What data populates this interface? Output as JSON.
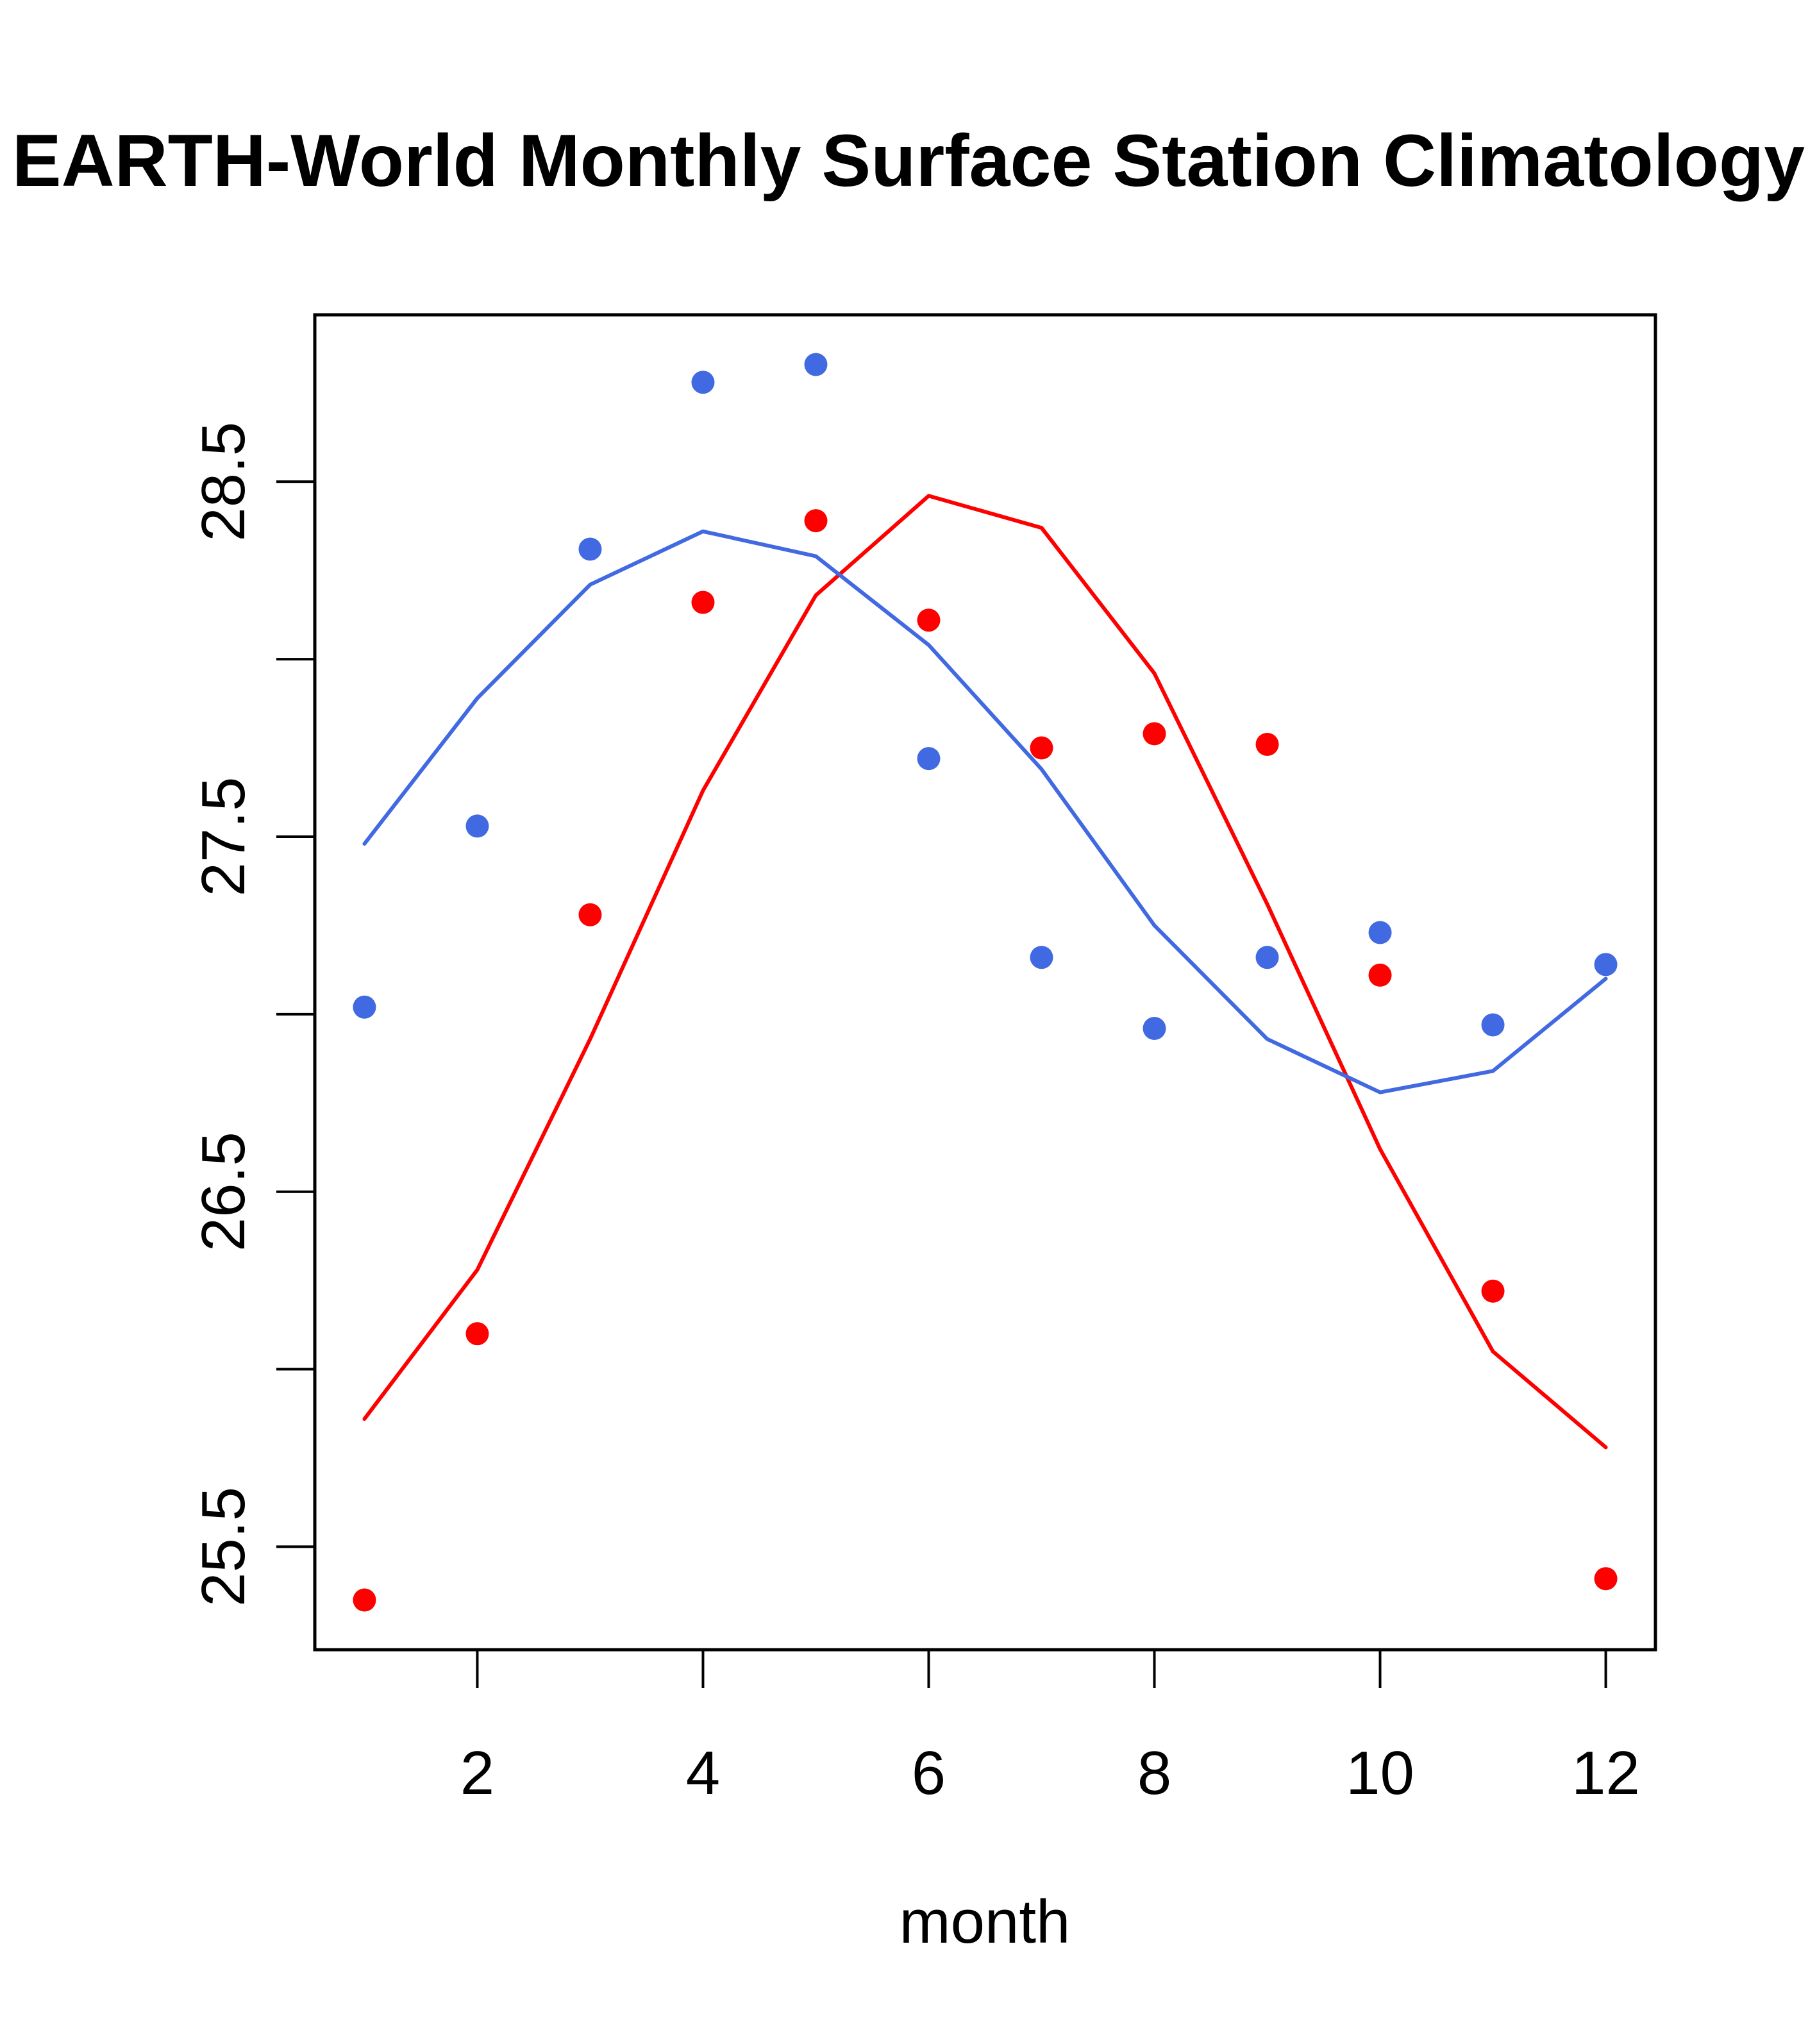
{
  "chart_data": {
    "type": "scatter",
    "title": "EARTH-World Monthly Surface Station Climatology",
    "xlabel": "month",
    "ylabel": "",
    "x": [
      1,
      2,
      3,
      4,
      5,
      6,
      7,
      8,
      9,
      10,
      11,
      12
    ],
    "xlim": [
      0.56,
      12.44
    ],
    "ylim": [
      25.21,
      28.97
    ],
    "xticks": [
      2,
      4,
      6,
      8,
      10,
      12
    ],
    "xtick_labels": [
      "2",
      "4",
      "6",
      "8",
      "10",
      "12"
    ],
    "yticks": [
      25.5,
      26.0,
      26.5,
      27.0,
      27.5,
      28.0,
      28.5
    ],
    "ytick_labels": [
      "25.5",
      "",
      "26.5",
      "",
      "27.5",
      "",
      "28.5"
    ],
    "grid": false,
    "legend": null,
    "series": [
      {
        "name": "red-points",
        "kind": "points",
        "color": "#FF0000",
        "values": [
          25.35,
          26.1,
          27.28,
          28.16,
          28.39,
          28.11,
          27.75,
          27.79,
          27.76,
          27.11,
          26.22,
          25.41
        ]
      },
      {
        "name": "red-line",
        "kind": "line",
        "color": "#FF0000",
        "values": [
          25.86,
          26.28,
          26.93,
          27.63,
          28.18,
          28.46,
          28.37,
          27.96,
          27.31,
          26.62,
          26.05,
          25.78
        ]
      },
      {
        "name": "blue-points",
        "kind": "points",
        "color": "#4169E1",
        "values": [
          27.02,
          27.53,
          28.31,
          28.78,
          28.83,
          27.72,
          27.16,
          26.96,
          27.16,
          27.23,
          26.97,
          27.14
        ]
      },
      {
        "name": "blue-line",
        "kind": "line",
        "color": "#4169E1",
        "values": [
          27.48,
          27.89,
          28.21,
          28.36,
          28.29,
          28.04,
          27.69,
          27.25,
          26.93,
          26.78,
          26.84,
          27.1
        ]
      }
    ]
  }
}
